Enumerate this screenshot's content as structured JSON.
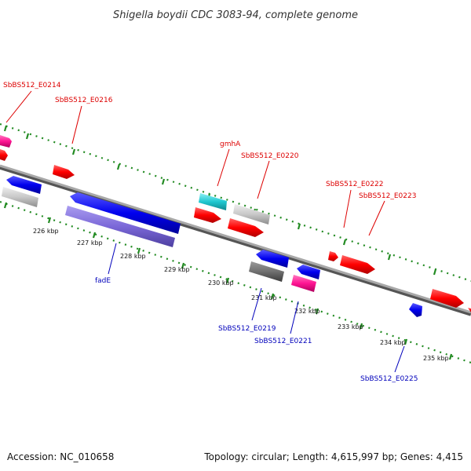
{
  "title": "Shigella boydii CDC 3083-94, complete genome",
  "footer": {
    "accession": "Accession: NC_010658",
    "summary": "Topology: circular; Length: 4,615,997 bp; Genes: 4,415"
  },
  "ticks": [
    "226 kbp",
    "227 kbp",
    "228 kbp",
    "229 kbp",
    "230 kbp",
    "231 kbp",
    "232 kbp",
    "233 kbp",
    "234 kbp",
    "235 kbp"
  ],
  "labels_forward": [
    "SbBS512_E0214",
    "SbBS512_E0216",
    "gmhA",
    "SbBS512_E0220",
    "SbBS512_E0222",
    "SbBS512_E0223"
  ],
  "labels_reverse": [
    "fadE",
    "SbBS512_E0219",
    "SbBS512_E0221",
    "SbBS512_E0225"
  ],
  "colors": {
    "forward_gene": "#ff0000",
    "reverse_gene": "#0000ee",
    "fade_gene": "#7b68d8",
    "pseudo_gene": "#c8c8c8",
    "grey_gene": "#707070",
    "pink_gene": "#ff1493",
    "cyan_gene": "#20c8d0",
    "backbone": "#888888",
    "dotted_track": "#228b22",
    "label_forward": "#dd0000",
    "label_reverse": "#0000bb"
  }
}
